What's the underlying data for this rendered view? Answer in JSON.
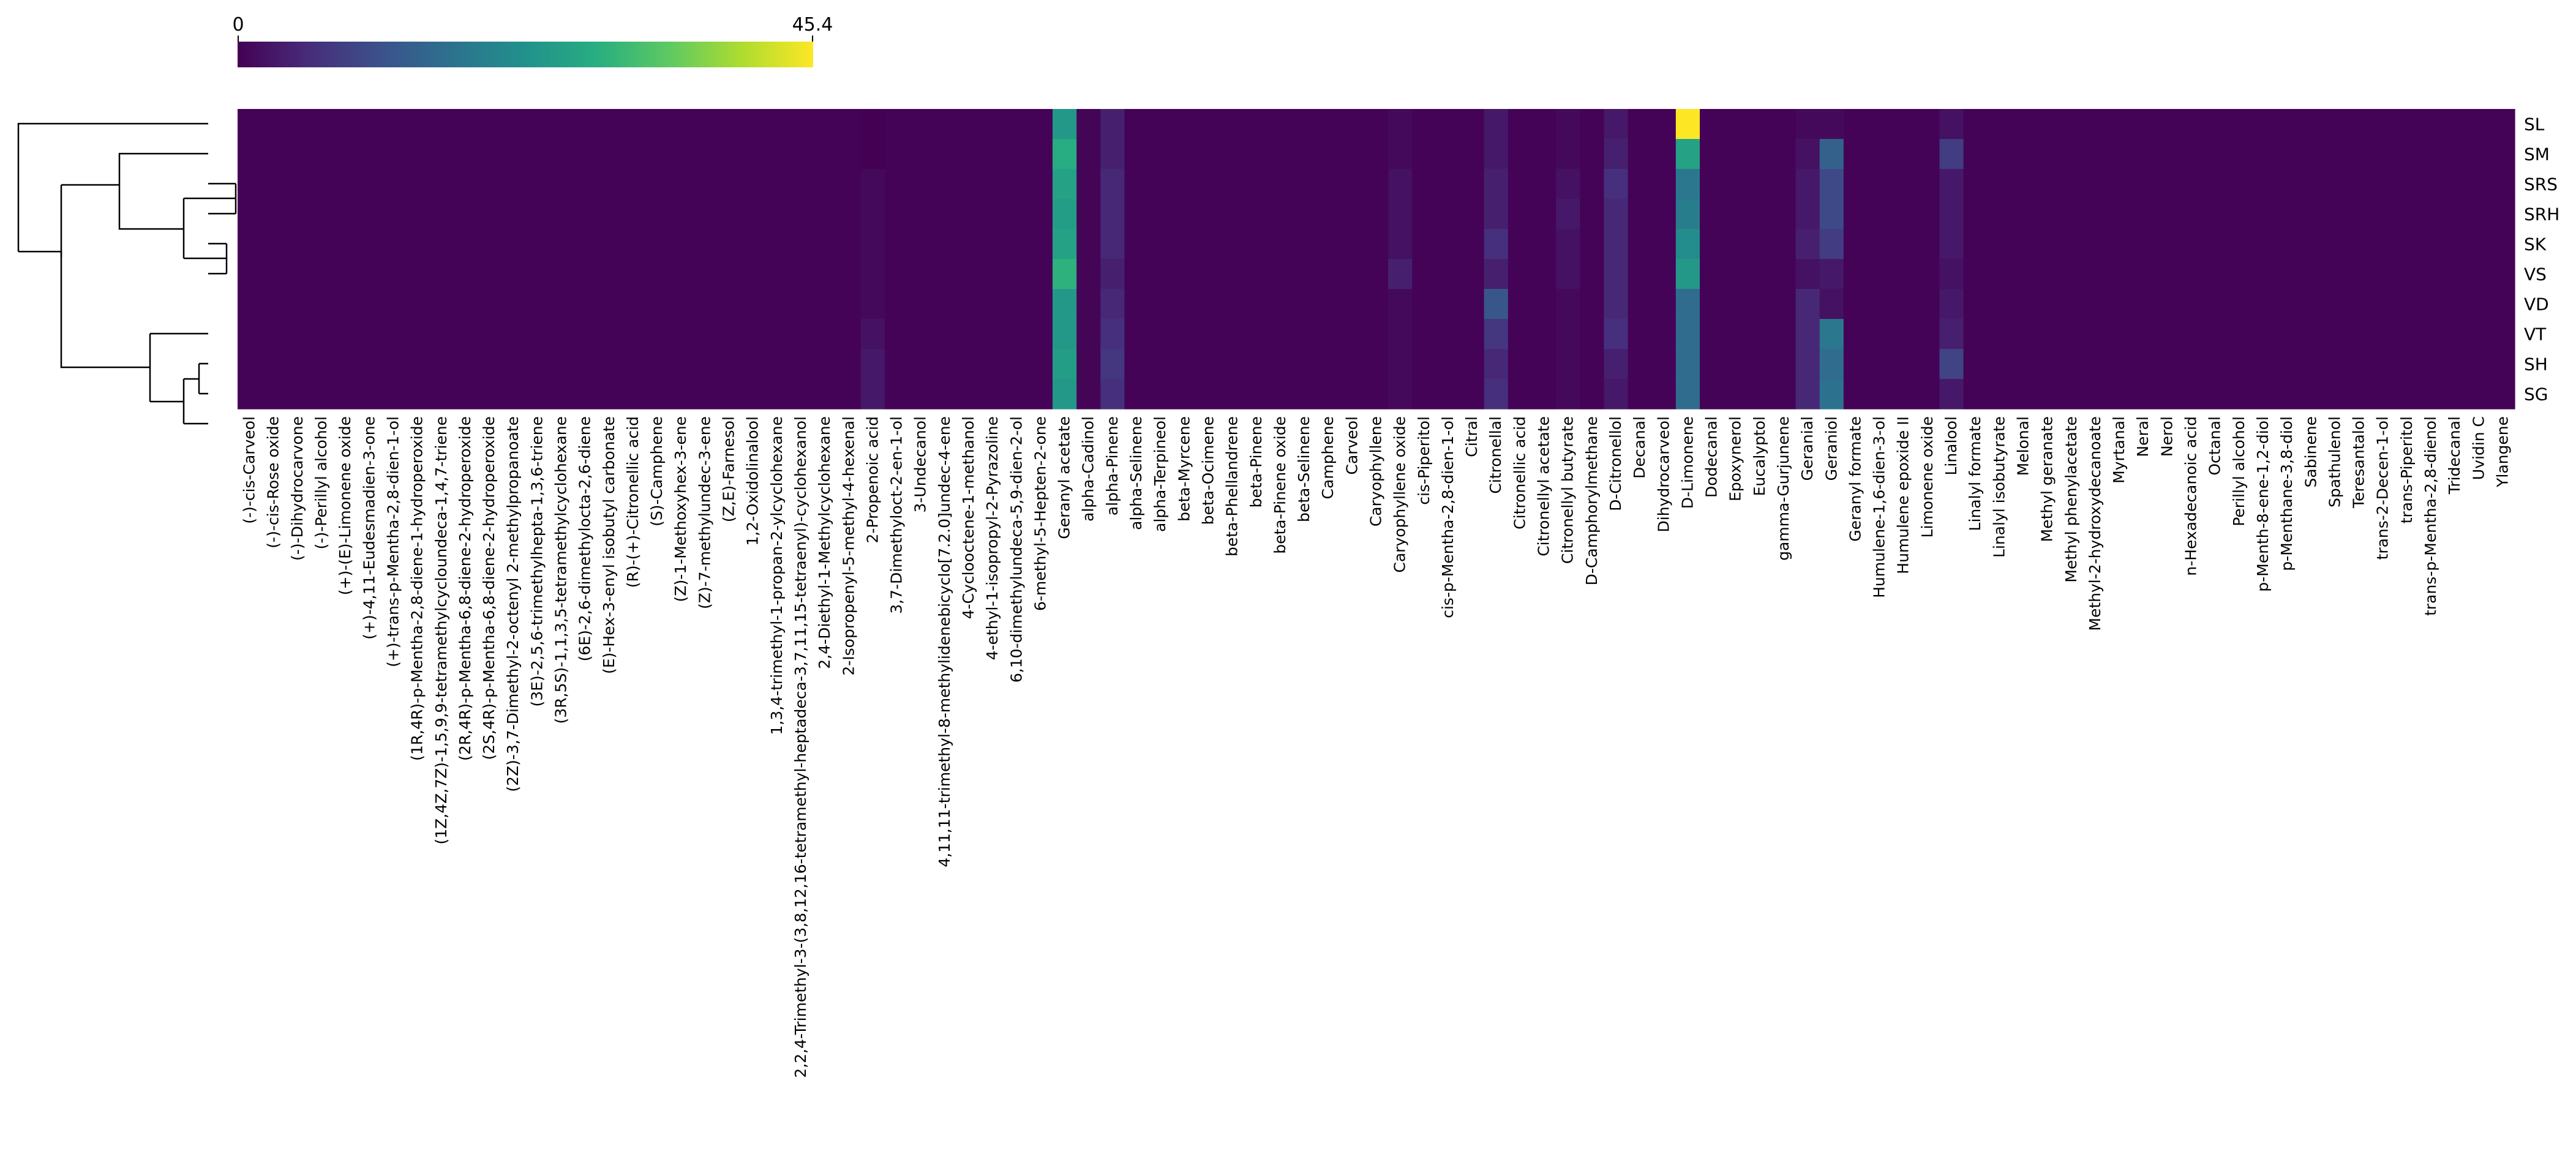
{
  "chart_data": {
    "type": "heatmap",
    "title": "",
    "colorbar": {
      "min": 0,
      "max": 45.4,
      "min_label": "0",
      "max_label": "45.4",
      "colormap": "viridis"
    },
    "dendrogram_side": "left",
    "rows": [
      "SL",
      "SM",
      "SRS",
      "SRH",
      "SK",
      "VS",
      "VD",
      "VT",
      "SH",
      "SG"
    ],
    "columns": [
      "(-)-cis-Carveol",
      "(-)-cis-Rose oxide",
      "(-)-Dihydrocarvone",
      "(-)-Perillyl alcohol",
      "(+)-(E)-Limonene oxide",
      "(+)-4,11-Eudesmadien-3-one",
      "(+)-trans-p-Mentha-2,8-dien-1-ol",
      "(1R,4R)-p-Mentha-2,8-diene-1-hydroperoxide",
      "(1Z,4Z,7Z)-1,5,9,9-tetramethylcycloundeca-1,4,7-triene",
      "(2R,4R)-p-Mentha-6,8-diene-2-hydroperoxide",
      "(2S,4R)-p-Mentha-6,8-diene-2-hydroperoxide",
      "(2Z)-3,7-Dimethyl-2-octenyl 2-methylpropanoate",
      "(3E)-2,5,6-trimethylhepta-1,3,6-triene",
      "(3R,5S)-1,1,3,5-tetramethylcyclohexane",
      "(6E)-2,6-dimethylocta-2,6-diene",
      "(E)-Hex-3-enyl isobutyl carbonate",
      "(R)-(+)-Citronellic acid",
      "(S)-Camphene",
      "(Z)-1-Methoxyhex-3-ene",
      "(Z)-7-methylundec-3-ene",
      "(Z,E)-Farnesol",
      "1,2-Oxidolinalool",
      "1,3,4-trimethyl-1-propan-2-ylcyclohexane",
      "2,2,4-Trimethyl-3-(3,8,12,16-tetramethyl-heptadeca-3,7,11,15-tetraenyl)-cyclohexanol",
      "2,4-Diethyl-1-Methylcyclohexane",
      "2-Isopropenyl-5-methyl-4-hexenal",
      "2-Propenoic acid",
      "3,7-Dimethyloct-2-en-1-ol",
      "3-Undecanol",
      "4,11,11-trimethyl-8-methylidenebicyclo[7.2.0]undec-4-ene",
      "4-Cyclooctene-1-methanol",
      "4-ethyl-1-isopropyl-2-Pyrazoline",
      "6,10-dimethylundeca-5,9-dien-2-ol",
      "6-methyl-5-Hepten-2-one",
      "Geranyl acetate",
      "alpha-Cadinol",
      "alpha-Pinene",
      "alpha-Selinene",
      "alpha-Terpineol",
      "beta-Myrcene",
      "beta-Ocimene",
      "beta-Phellandrene",
      "beta-Pinene",
      "beta-Pinene oxide",
      "beta-Selinene",
      "Camphene",
      "Carveol",
      "Caryophyllene",
      "Caryophyllene oxide",
      "cis-Piperitol",
      "cis-p-Mentha-2,8-dien-1-ol",
      "Citral",
      "Citronellal",
      "Citronellic acid",
      "Citronellyl acetate",
      "Citronellyl butyrate",
      "D-Camphorylmethane",
      "D-Citronellol",
      "Decanal",
      "Dihydrocarveol",
      "D-Limonene",
      "Dodecanal",
      "Epoxynerol",
      "Eucalyptol",
      "gamma-Gurjunene",
      "Geranial",
      "Geraniol",
      "Geranyl formate",
      "Humulene-1,6-dien-3-ol",
      "Humulene epoxide II",
      "Limonene oxide",
      "Linalool",
      "Linalyl formate",
      "Linalyl isobutyrate",
      "Melonal",
      "Methyl geranate",
      "Methyl phenylacetate",
      "Methyl-2-hydroxydecanoate",
      "Myrtanal",
      "Neral",
      "Nerol",
      "n-Hexadecanoic acid",
      "Octanal",
      "Perillyl alcohol",
      "p-Menth-8-ene-1,2-diol",
      "p-Menthane-3,8-diol",
      "Sabinene",
      "Spathulenol",
      "Teresantalol",
      "trans-2-Decen-1-ol",
      "trans-Piperitol",
      "trans-p-Mentha-2,8-dienol",
      "Tridecanal",
      "Uvidin C",
      "Ylangene"
    ],
    "notable_values": [
      {
        "column": "Geranyl acetate",
        "values": [
          24,
          28,
          26,
          25,
          26,
          29,
          24,
          24,
          25,
          24
        ]
      },
      {
        "column": "alpha-Cadinol",
        "values": [
          0.5,
          0.5,
          0.5,
          0.5,
          0.5,
          0.5,
          0.5,
          0.5,
          0.5,
          0.5
        ]
      },
      {
        "column": "alpha-Pinene",
        "values": [
          4,
          4,
          5,
          5,
          5,
          4,
          5,
          6,
          7,
          6
        ]
      },
      {
        "column": "Caryophyllene oxide",
        "values": [
          1,
          1,
          2,
          2,
          2,
          4,
          1,
          1,
          1,
          1
        ]
      },
      {
        "column": "Citronellal",
        "values": [
          3,
          3,
          4,
          4,
          6,
          4,
          12,
          7,
          5,
          6
        ]
      },
      {
        "column": "Citronellyl butyrate",
        "values": [
          1,
          1,
          2,
          3,
          2,
          2,
          1,
          1,
          1,
          1
        ]
      },
      {
        "column": "D-Citronellol",
        "values": [
          3,
          4,
          6,
          5,
          5,
          5,
          5,
          6,
          4,
          3
        ]
      },
      {
        "column": "D-Limonene",
        "values": [
          45.4,
          26,
          18,
          19,
          22,
          24,
          16,
          16,
          16,
          16
        ]
      },
      {
        "column": "Geranial",
        "values": [
          1,
          2,
          3,
          3,
          4,
          2,
          5,
          5,
          5,
          5
        ]
      },
      {
        "column": "Geraniol",
        "values": [
          1,
          14,
          10,
          10,
          8,
          3,
          2,
          18,
          16,
          17
        ]
      },
      {
        "column": "Linalool",
        "values": [
          2,
          8,
          3,
          3,
          3,
          2,
          3,
          4,
          9,
          3
        ]
      },
      {
        "column": "2-Propenoic acid",
        "values": [
          0,
          0,
          1,
          1,
          1,
          1,
          1,
          2,
          3,
          3
        ]
      }
    ],
    "default_value": 0.3
  }
}
